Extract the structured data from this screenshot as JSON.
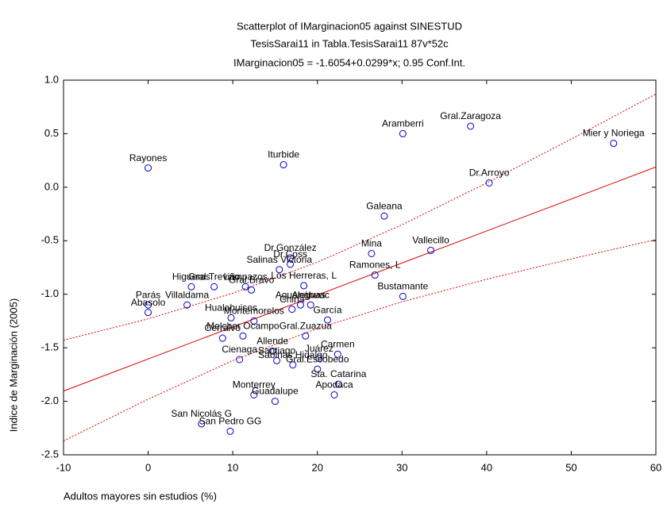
{
  "chart_data": {
    "type": "scatter",
    "title": "Scatterplot of IMarginacion05 against SINESTUD",
    "subtitle": "TesisSarai11 in Tabla.TesisSarai11 87v*52c",
    "equation": "IMarginacion05 = -1.6054+0.0299*x; 0.95 Conf.Int.",
    "x_label": "Adultos mayores sin estudios (%)",
    "y_label": "Indice de Marginación (2005)",
    "xlim": [
      -10,
      60
    ],
    "ylim": [
      -2.5,
      1.0
    ],
    "xticks": [
      -10,
      0,
      10,
      20,
      30,
      40,
      50,
      60
    ],
    "yticks": [
      {
        "value": 1.0,
        "label": "1.0"
      },
      0.5,
      {
        "value": 0.0,
        "label": "0.0"
      },
      -0.5,
      {
        "value": -1.0,
        "label": "-1.0"
      },
      -1.5,
      {
        "value": -2.0,
        "label": "-2.0"
      },
      -2.5
    ],
    "color": "#0000cc",
    "line_color": "#dd0000",
    "point_labels": [
      "Rayones",
      "Iturbide",
      "Aramberri",
      "Gral.Zaragoza",
      "Mier y Noriega",
      "Dr.Arroyo",
      "Galeana",
      "Mina",
      "Vallecillo",
      "Ramones, L",
      "Bustamante",
      "Dr.González",
      "Dr.Coss",
      "Salinas Victoria",
      "Los Herreras, L",
      "Lampazos",
      "Gral.Bravo",
      "Gral.Treviño",
      "Higueras",
      "Villaldama",
      "Parás",
      "Abasolo",
      "Hualahuises",
      "Montemorelos",
      "Melchor Ocampo",
      "Cerralvo",
      "China",
      "Agualeguas",
      "Anáhuac",
      "García",
      "Gral.Zuazua",
      "Allende",
      "Cienaga",
      "Carmen",
      "Juárez",
      "Santiago",
      "Sabinas Hidalgo",
      "Gral.Escobedo",
      "Sta. Catarina",
      "Apodaca",
      "Monterrey",
      "Guadalupe",
      "San Nicolás G",
      "San Pedro GG"
    ],
    "x": [
      0,
      16.0,
      30.1,
      38.1,
      55.0,
      40.3,
      27.9,
      26.4,
      33.4,
      26.8,
      30.1,
      16.8,
      16.8,
      15.5,
      18.4,
      11.5,
      12.2,
      7.8,
      5.1,
      4.6,
      0,
      0,
      9.8,
      12.5,
      11.2,
      8.8,
      17.0,
      18.0,
      19.2,
      21.2,
      18.6,
      14.7,
      10.8,
      22.4,
      20.2,
      15.2,
      17.1,
      20.0,
      22.5,
      22.0,
      12.5,
      15.0,
      6.3,
      9.7
    ],
    "values": [
      0.18,
      0.21,
      0.5,
      0.57,
      0.41,
      0.04,
      -0.27,
      -0.62,
      -0.59,
      -0.82,
      -1.02,
      -0.66,
      -0.72,
      -0.77,
      -0.92,
      -0.93,
      -0.96,
      -0.93,
      -0.93,
      -1.1,
      -1.1,
      -1.17,
      -1.22,
      -1.25,
      -1.39,
      -1.41,
      -1.14,
      -1.1,
      -1.1,
      -1.24,
      -1.39,
      -1.53,
      -1.61,
      -1.56,
      -1.6,
      -1.62,
      -1.66,
      -1.7,
      -1.84,
      -1.94,
      -1.94,
      -2.0,
      -2.21,
      -2.28
    ],
    "fit_line": {
      "x": [
        -10,
        60
      ],
      "y": [
        -1.904,
        0.189
      ]
    },
    "ci_upper": {
      "x": [
        -10,
        0,
        10,
        20,
        30,
        40,
        50,
        60
      ],
      "y": [
        -1.43,
        -1.23,
        -0.99,
        -0.7,
        -0.35,
        0.04,
        0.45,
        0.87
      ]
    },
    "ci_lower": {
      "x": [
        -10,
        0,
        10,
        20,
        30,
        40,
        50,
        60
      ],
      "y": [
        -2.37,
        -1.98,
        -1.62,
        -1.32,
        -1.07,
        -0.86,
        -0.67,
        -0.49
      ]
    }
  }
}
